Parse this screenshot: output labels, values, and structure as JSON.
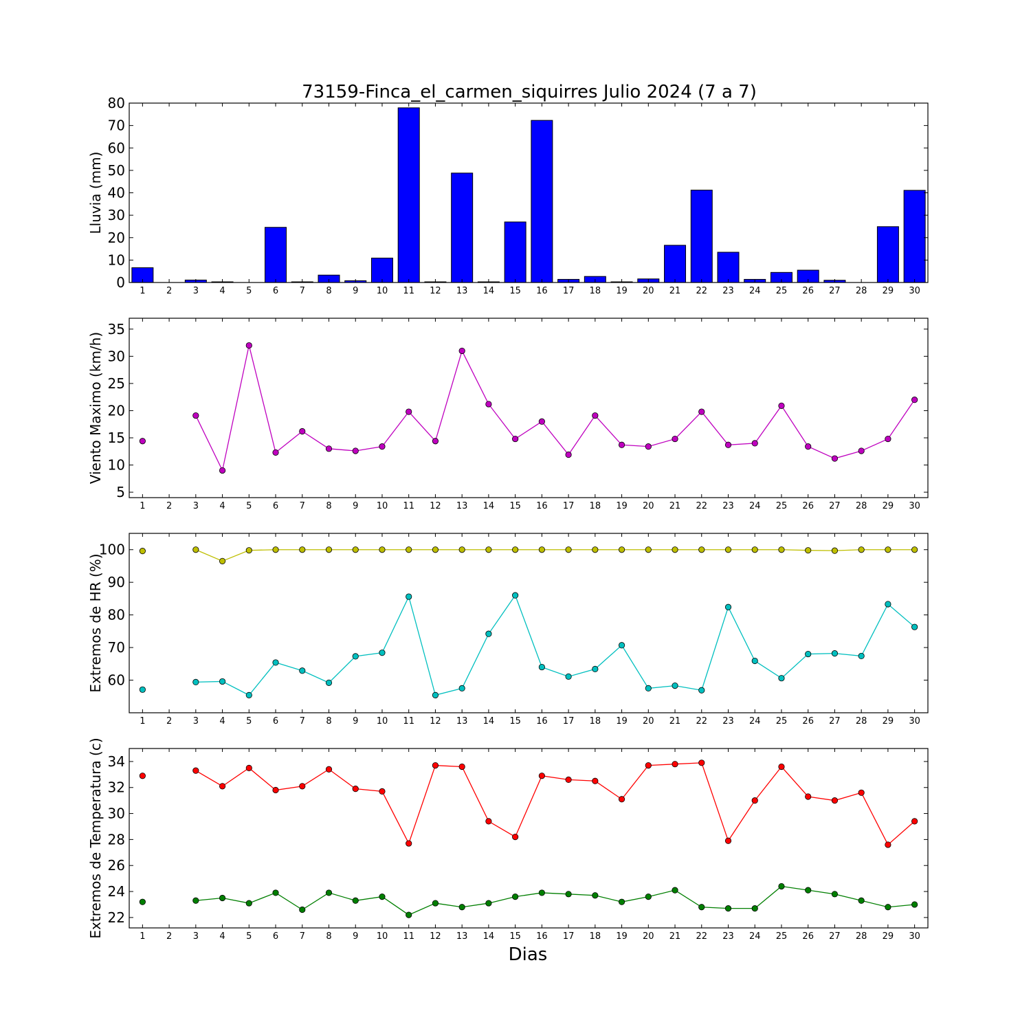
{
  "chart_data": {
    "title": "73159-Finca_el_carmen_siquirres Julio 2024  (7 a 7)",
    "xlabel": "Dias",
    "days": [
      1,
      2,
      3,
      4,
      5,
      6,
      7,
      8,
      9,
      10,
      11,
      12,
      13,
      14,
      15,
      16,
      17,
      18,
      19,
      20,
      21,
      22,
      23,
      24,
      25,
      26,
      27,
      28,
      29,
      30
    ],
    "panels": [
      {
        "type": "bar",
        "ylabel": "Lluvia (mm)",
        "ylim": [
          0,
          80
        ],
        "yticks": [
          0,
          10,
          20,
          30,
          40,
          50,
          60,
          70,
          80
        ],
        "series": [
          {
            "color": "#0000ff",
            "values": [
              6.6,
              0,
              1.1,
              0.3,
              0,
              24.6,
              0.3,
              3.3,
              0.8,
              10.9,
              77.9,
              0.3,
              48.8,
              0.3,
              27.0,
              72.3,
              1.4,
              2.7,
              0.3,
              1.6,
              16.6,
              41.2,
              13.5,
              1.4,
              4.5,
              5.5,
              1.0,
              0,
              24.9,
              41.1
            ]
          }
        ]
      },
      {
        "type": "line",
        "ylabel": "Viento Maximo (km/h)",
        "ylim": [
          4,
          37
        ],
        "yticks": [
          5,
          10,
          15,
          20,
          25,
          30,
          35
        ],
        "series": [
          {
            "color": "#bf00bf",
            "values": [
              14.4,
              null,
              19.1,
              9.0,
              32.0,
              12.3,
              16.2,
              13.0,
              12.6,
              13.4,
              19.8,
              14.4,
              31.0,
              21.2,
              14.8,
              18.0,
              11.9,
              19.1,
              13.7,
              13.4,
              14.8,
              19.8,
              13.7,
              14.0,
              20.9,
              13.4,
              11.2,
              12.6,
              14.8,
              22.0
            ]
          }
        ]
      },
      {
        "type": "line",
        "ylabel": "Extremos de HR (%)",
        "ylim": [
          50,
          105
        ],
        "yticks": [
          60,
          70,
          80,
          90,
          100
        ],
        "series": [
          {
            "color": "#bfbf00",
            "values": [
              99.6,
              null,
              100,
              96.5,
              99.8,
              100,
              100,
              100,
              100,
              100,
              100,
              100,
              100,
              100,
              100,
              100,
              100,
              100,
              100,
              100,
              100,
              100,
              100,
              100,
              100,
              99.8,
              99.7,
              100,
              100,
              100
            ]
          },
          {
            "color": "#00bfbf",
            "values": [
              57.1,
              null,
              59.4,
              59.6,
              55.4,
              65.4,
              62.9,
              59.2,
              67.3,
              68.4,
              85.6,
              55.4,
              57.5,
              74.2,
              86.0,
              64.0,
              61.1,
              63.4,
              70.7,
              57.5,
              58.3,
              56.9,
              82.4,
              65.9,
              60.6,
              68.0,
              68.2,
              67.4,
              83.3,
              76.3
            ]
          }
        ]
      },
      {
        "type": "line",
        "ylabel": "Extremos de Temperatura (c)",
        "ylim": [
          21.2,
          35
        ],
        "yticks": [
          22,
          24,
          26,
          28,
          30,
          32,
          34
        ],
        "series": [
          {
            "color": "#ff0000",
            "values": [
              32.9,
              null,
              33.3,
              32.1,
              33.5,
              31.8,
              32.1,
              33.4,
              31.9,
              31.7,
              27.7,
              33.7,
              33.6,
              29.4,
              28.2,
              32.9,
              32.6,
              32.5,
              31.1,
              33.7,
              33.8,
              33.9,
              27.9,
              31.0,
              33.6,
              31.3,
              31.0,
              31.6,
              27.6,
              29.4
            ]
          },
          {
            "color": "#007f00",
            "values": [
              23.2,
              null,
              23.3,
              23.5,
              23.1,
              23.9,
              22.6,
              23.9,
              23.3,
              23.6,
              22.2,
              23.1,
              22.8,
              23.1,
              23.6,
              23.9,
              23.8,
              23.7,
              23.2,
              23.6,
              24.1,
              22.8,
              22.7,
              22.7,
              24.4,
              24.1,
              23.8,
              23.3,
              22.8,
              23.0
            ]
          }
        ]
      }
    ]
  }
}
